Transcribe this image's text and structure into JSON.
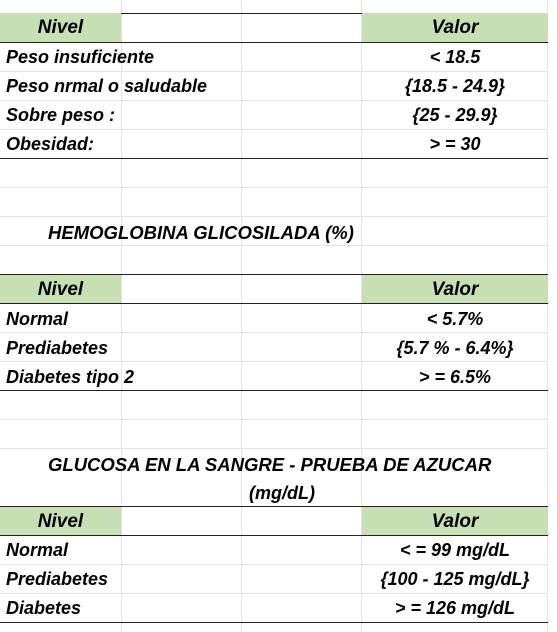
{
  "imc": {
    "header": {
      "nivel": "Nivel",
      "valor": "Valor"
    },
    "rows": [
      {
        "nivel": "Peso insuficiente",
        "valor": "< 18.5"
      },
      {
        "nivel": "Peso nrmal  o saludable",
        "valor": "{18.5 - 24.9}"
      },
      {
        "nivel": "Sobre peso :",
        "valor": "{25 - 29.9}"
      },
      {
        "nivel": "Obesidad:",
        "valor": "> = 30"
      }
    ]
  },
  "hemoglobina": {
    "title": "HEMOGLOBINA GLICOSILADA (%)",
    "header": {
      "nivel": "Nivel",
      "valor": "Valor"
    },
    "rows": [
      {
        "nivel": "Normal",
        "valor": "< 5.7%"
      },
      {
        "nivel": "Prediabetes",
        "valor": "{5.7 % - 6.4%}"
      },
      {
        "nivel": "Diabetes tipo 2",
        "valor": "> = 6.5%"
      }
    ]
  },
  "glucosa": {
    "title": "GLUCOSA EN LA SANGRE - PRUEBA DE AZUCAR",
    "unit": "(mg/dL)",
    "header": {
      "nivel": "Nivel",
      "valor": "Valor"
    },
    "rows": [
      {
        "nivel": "Normal",
        "valor": "< = 99 mg/dL"
      },
      {
        "nivel": "Prediabetes",
        "valor": "{100 - 125 mg/dL}"
      },
      {
        "nivel": "Diabetes",
        "valor": "> =  126 mg/dL"
      }
    ]
  },
  "colors": {
    "header_fill": "#c6e0b4"
  }
}
